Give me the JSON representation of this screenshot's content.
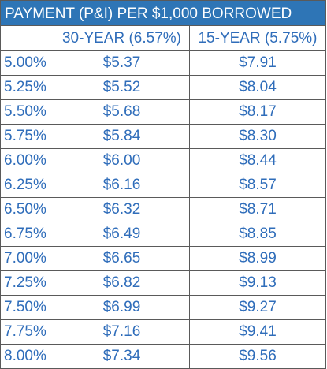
{
  "header": {
    "title": "PAYMENT (P&I) PER $1,000 BORROWED"
  },
  "table": {
    "columns": [
      "30-YEAR (6.57%)",
      "15-YEAR (5.75%)"
    ],
    "rows": [
      [
        "5.00%",
        "$5.37",
        "$7.91"
      ],
      [
        "5.25%",
        "$5.52",
        "$8.04"
      ],
      [
        "5.50%",
        "$5.68",
        "$8.17"
      ],
      [
        "5.75%",
        "$5.84",
        "$8.30"
      ],
      [
        "6.00%",
        "$6.00",
        "$8.44"
      ],
      [
        "6.25%",
        "$6.16",
        "$8.57"
      ],
      [
        "6.50%",
        "$6.32",
        "$8.71"
      ],
      [
        "6.75%",
        "$6.49",
        "$8.85"
      ],
      [
        "7.00%",
        "$6.65",
        "$8.99"
      ],
      [
        "7.25%",
        "$6.82",
        "$9.13"
      ],
      [
        "7.50%",
        "$6.99",
        "$9.27"
      ],
      [
        "7.75%",
        "$7.16",
        "$9.41"
      ],
      [
        "8.00%",
        "$7.34",
        "$9.56"
      ]
    ]
  }
}
